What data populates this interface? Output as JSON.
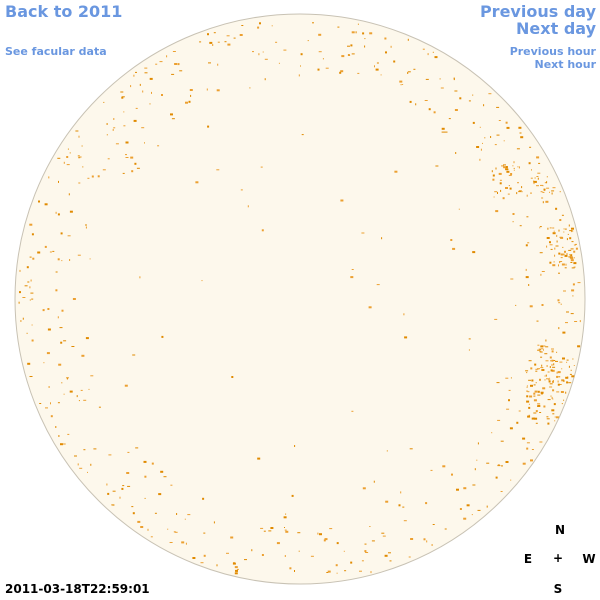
{
  "nav": {
    "back": "Back to 2011",
    "facular": "See facular data",
    "previous_day": "Previous day",
    "next_day": "Next day",
    "previous_hour": "Previous hour",
    "next_hour": "Next hour"
  },
  "timestamp": "2011-03-18T22:59:01",
  "compass": {
    "north": "N",
    "east": "E",
    "center": "+",
    "west": "W",
    "south": "S"
  }
}
